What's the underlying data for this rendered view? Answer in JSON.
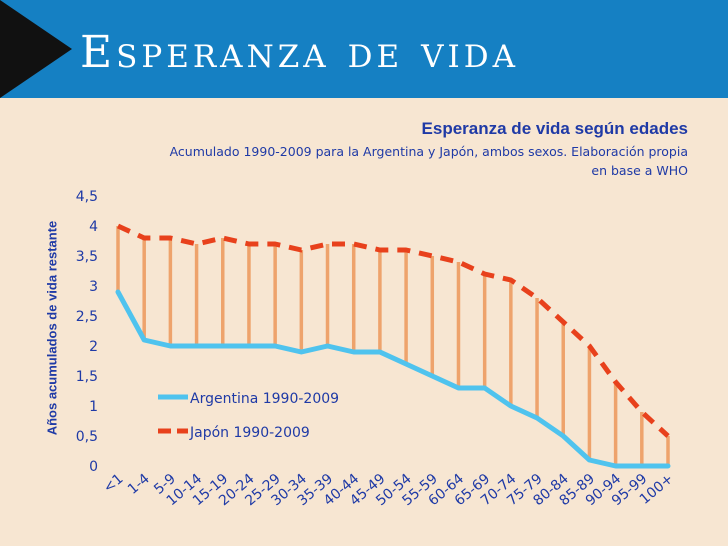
{
  "slide": {
    "title": "Esperanza de vida"
  },
  "chart_data": {
    "type": "line",
    "title": "Esperanza de vida según edades",
    "subtitle": "Acumulado 1990-2009 para la Argentina y Japón, ambos sexos. Elaboración propia en base a WHO",
    "xlabel": "",
    "ylabel": "Años acumulados de vida restante",
    "ylim": [
      0,
      4.5
    ],
    "yticks": [
      "0",
      "0,5",
      "1",
      "1,5",
      "2",
      "2,5",
      "3",
      "3,5",
      "4",
      "4,5"
    ],
    "categories": [
      "<1",
      "1-4",
      "5-9",
      "10-14",
      "15-19",
      "20-24",
      "25-29",
      "30-34",
      "35-39",
      "40-44",
      "45-49",
      "50-54",
      "55-59",
      "60-64",
      "65-69",
      "70-74",
      "75-79",
      "80-84",
      "85-89",
      "90-94",
      "95-99",
      "100+"
    ],
    "series": [
      {
        "name": "Argentina 1990-2009",
        "color": "#4fc3ee",
        "style": "solid",
        "values": [
          2.9,
          2.1,
          2.0,
          2.0,
          2.0,
          2.0,
          2.0,
          1.9,
          2.0,
          1.9,
          1.9,
          1.7,
          1.5,
          1.3,
          1.3,
          1.0,
          0.8,
          0.5,
          0.1,
          0.0,
          0.0,
          0.0
        ]
      },
      {
        "name": "Japón 1990-2009",
        "color": "#e8411c",
        "style": "dashed",
        "values": [
          4.0,
          3.8,
          3.8,
          3.7,
          3.8,
          3.7,
          3.7,
          3.6,
          3.7,
          3.7,
          3.6,
          3.6,
          3.5,
          3.4,
          3.2,
          3.1,
          2.8,
          2.4,
          2.0,
          1.4,
          0.9,
          0.5
        ]
      }
    ],
    "difference_bars_color": "#eea36c",
    "grid": false,
    "legend": "bottom-left"
  }
}
